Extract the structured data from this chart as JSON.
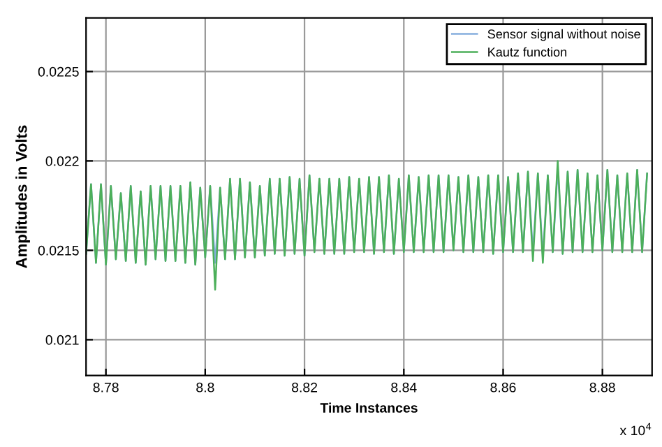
{
  "chart_data": {
    "type": "line",
    "xlabel": "Time Instances",
    "ylabel": "Amplitudes in Volts",
    "annotations": [
      "x 10$^{4}$"
    ],
    "x": [
      8.776,
      8.777,
      8.778,
      8.779,
      8.78,
      8.781,
      8.782,
      8.783,
      8.784,
      8.785,
      8.786,
      8.787,
      8.788,
      8.789,
      8.79,
      8.791,
      8.792,
      8.793,
      8.794,
      8.795,
      8.796,
      8.797,
      8.798,
      8.799,
      8.8,
      8.801,
      8.802,
      8.803,
      8.804,
      8.805,
      8.806,
      8.807,
      8.808,
      8.809,
      8.81,
      8.811,
      8.812,
      8.813,
      8.814,
      8.815,
      8.816,
      8.817,
      8.818,
      8.819,
      8.82,
      8.821,
      8.822,
      8.823,
      8.824,
      8.825,
      8.826,
      8.827,
      8.828,
      8.829,
      8.83,
      8.831,
      8.832,
      8.833,
      8.834,
      8.835,
      8.836,
      8.837,
      8.838,
      8.839,
      8.84,
      8.841,
      8.842,
      8.843,
      8.844,
      8.845,
      8.846,
      8.847,
      8.848,
      8.849,
      8.85,
      8.851,
      8.852,
      8.853,
      8.854,
      8.855,
      8.856,
      8.857,
      8.858,
      8.859,
      8.86,
      8.861,
      8.862,
      8.863,
      8.864,
      8.865,
      8.866,
      8.867,
      8.868,
      8.869,
      8.87,
      8.871,
      8.872,
      8.873,
      8.874,
      8.875,
      8.876,
      8.877,
      8.878,
      8.879,
      8.88,
      8.881,
      8.882,
      8.883,
      8.884,
      8.885,
      8.886,
      8.887,
      8.888,
      8.889
    ],
    "series": [
      {
        "name": "Sensor signal without noise",
        "color": "#86aede",
        "values": [
          0.02148,
          0.02187,
          0.02143,
          0.02187,
          0.02142,
          0.02186,
          0.02145,
          0.02182,
          0.02144,
          0.02186,
          0.02143,
          0.02183,
          0.02142,
          0.02186,
          0.02145,
          0.02186,
          0.02144,
          0.02186,
          0.02144,
          0.02186,
          0.02143,
          0.02188,
          0.02142,
          0.02185,
          0.02146,
          0.02186,
          0.02143,
          0.02185,
          0.02145,
          0.0219,
          0.02145,
          0.0219,
          0.02146,
          0.02188,
          0.02146,
          0.02186,
          0.02147,
          0.0219,
          0.02148,
          0.0219,
          0.02147,
          0.02191,
          0.02148,
          0.0219,
          0.02147,
          0.02192,
          0.02149,
          0.0219,
          0.02148,
          0.0219,
          0.02148,
          0.0219,
          0.02148,
          0.02191,
          0.02149,
          0.0219,
          0.02149,
          0.02191,
          0.02148,
          0.02191,
          0.02149,
          0.02192,
          0.02148,
          0.0219,
          0.02149,
          0.02192,
          0.02149,
          0.02191,
          0.02149,
          0.02192,
          0.02149,
          0.02192,
          0.02149,
          0.02192,
          0.0215,
          0.02191,
          0.02149,
          0.02192,
          0.02149,
          0.02191,
          0.02149,
          0.02192,
          0.02148,
          0.02192,
          0.02149,
          0.02191,
          0.02149,
          0.02193,
          0.02149,
          0.02194,
          0.02149,
          0.02193,
          0.02147,
          0.02192,
          0.02149,
          0.02196,
          0.02148,
          0.02194,
          0.02149,
          0.02195,
          0.02149,
          0.02193,
          0.02149,
          0.02192,
          0.0215,
          0.02195,
          0.02149,
          0.02192,
          0.02149,
          0.02193,
          0.02149,
          0.02195,
          0.02149,
          0.02193
        ]
      },
      {
        "name": "Kautz function",
        "color": "#4caf5a",
        "values": [
          0.02148,
          0.02187,
          0.02143,
          0.02187,
          0.02142,
          0.02186,
          0.02145,
          0.02182,
          0.02144,
          0.02186,
          0.02143,
          0.02183,
          0.02142,
          0.02186,
          0.02145,
          0.02186,
          0.02144,
          0.02186,
          0.02144,
          0.02186,
          0.02143,
          0.02188,
          0.02142,
          0.02185,
          0.02146,
          0.02186,
          0.02128,
          0.02185,
          0.02145,
          0.0219,
          0.02145,
          0.0219,
          0.02146,
          0.02188,
          0.02146,
          0.02186,
          0.02147,
          0.0219,
          0.02148,
          0.0219,
          0.02147,
          0.02191,
          0.02148,
          0.0219,
          0.02147,
          0.02192,
          0.02149,
          0.0219,
          0.02148,
          0.0219,
          0.02148,
          0.0219,
          0.02148,
          0.02191,
          0.02149,
          0.0219,
          0.02149,
          0.02191,
          0.02148,
          0.02191,
          0.02149,
          0.02192,
          0.02148,
          0.0219,
          0.02149,
          0.02192,
          0.02149,
          0.02191,
          0.02149,
          0.02192,
          0.02149,
          0.02192,
          0.02149,
          0.02192,
          0.0215,
          0.02191,
          0.02149,
          0.02192,
          0.02149,
          0.02191,
          0.02149,
          0.02192,
          0.02148,
          0.02192,
          0.02149,
          0.02191,
          0.02149,
          0.02193,
          0.02149,
          0.02194,
          0.02144,
          0.02193,
          0.02143,
          0.02192,
          0.02149,
          0.022,
          0.02148,
          0.02194,
          0.02149,
          0.02195,
          0.02149,
          0.02193,
          0.02149,
          0.02192,
          0.0215,
          0.02195,
          0.02149,
          0.02192,
          0.02149,
          0.02193,
          0.02149,
          0.02195,
          0.02149,
          0.02193
        ]
      }
    ],
    "xlim": [
      8.776,
      8.89
    ],
    "ylim": [
      0.0208,
      0.0228
    ],
    "xticks": [
      8.78,
      8.8,
      8.82,
      8.84,
      8.86,
      8.88
    ],
    "yticks": [
      0.021,
      0.0215,
      0.022,
      0.0225
    ],
    "grid": true,
    "legend": "top right",
    "line_style": "solid",
    "marker": "none"
  }
}
